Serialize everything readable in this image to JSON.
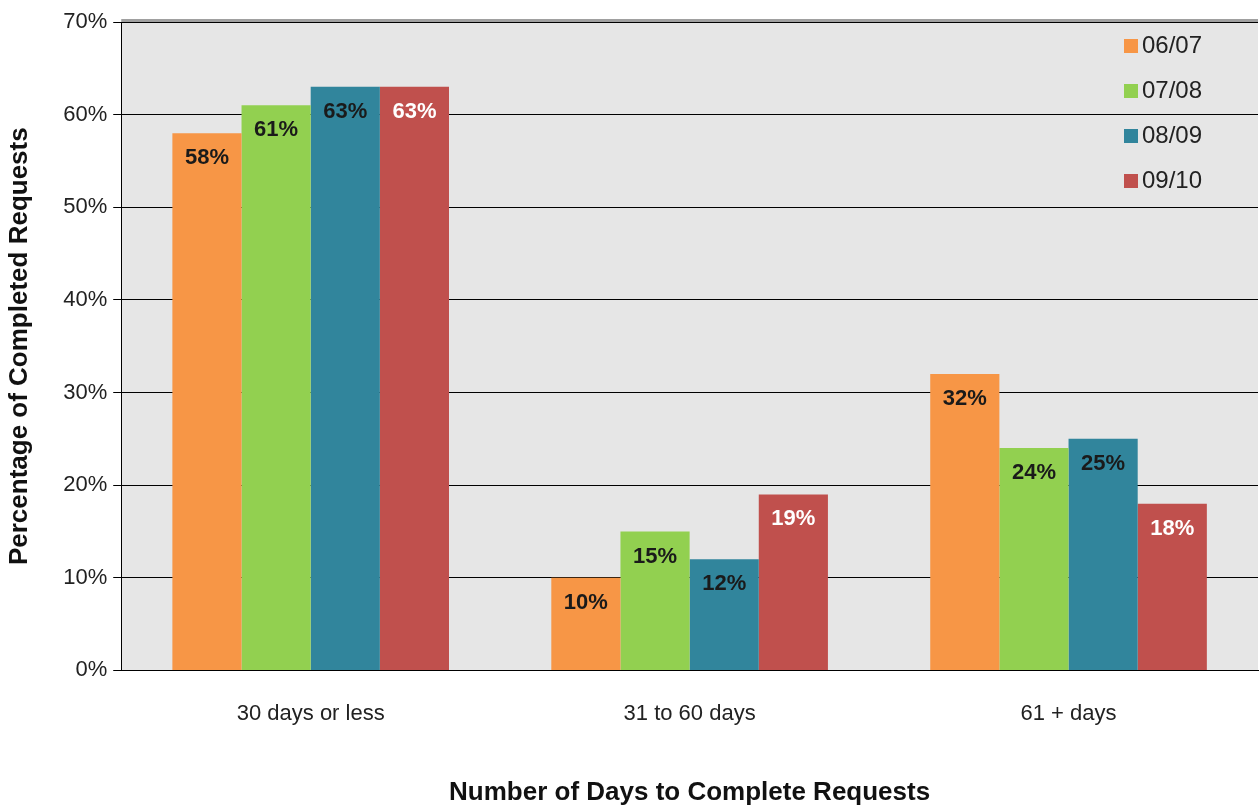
{
  "chart_data": {
    "type": "bar",
    "xlabel": "Number of Days to Complete Requests",
    "ylabel": "Percentage of Completed Requests",
    "categories": [
      "30 days or less",
      "31 to 60 days",
      "61 + days"
    ],
    "series": [
      {
        "name": "06/07",
        "color": "#f79646",
        "values": [
          58,
          10,
          32
        ],
        "value_labels": [
          "58%",
          "10%",
          "32%"
        ]
      },
      {
        "name": "07/08",
        "color": "#92d050",
        "values": [
          61,
          15,
          24
        ],
        "value_labels": [
          "61%",
          "15%",
          "24%"
        ]
      },
      {
        "name": "08/09",
        "color": "#31859c",
        "values": [
          63,
          12,
          25
        ],
        "value_labels": [
          "63%",
          "12%",
          "25%"
        ]
      },
      {
        "name": "09/10",
        "color": "#c0504d",
        "values": [
          63,
          19,
          18
        ],
        "value_labels": [
          "63%",
          "19%",
          "18%"
        ]
      }
    ],
    "ylim": [
      0,
      70
    ],
    "yticks": [
      {
        "value": 0,
        "label": "0%"
      },
      {
        "value": 10,
        "label": "10%"
      },
      {
        "value": 20,
        "label": "20%"
      },
      {
        "value": 30,
        "label": "30%"
      },
      {
        "value": 40,
        "label": "40%"
      },
      {
        "value": 50,
        "label": "50%"
      },
      {
        "value": 60,
        "label": "60%"
      },
      {
        "value": 70,
        "label": "70%"
      }
    ],
    "grid": "y",
    "legend": "top right"
  }
}
